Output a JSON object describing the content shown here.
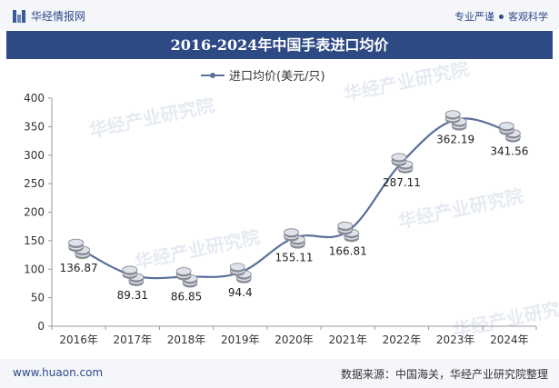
{
  "header": {
    "brand": "华经情报网",
    "tagline_left": "专业严谨",
    "tagline_right": "客观科学",
    "title": "2016-2024年中国手表进口均价"
  },
  "footer": {
    "url": "www.huaon.com",
    "source": "数据来源：中国海关，华经产业研究院整理"
  },
  "watermark": "华经产业研究院",
  "colors": {
    "header_bg": "#2e4a85",
    "line": "#5b6f9c",
    "brand": "#2d4a8a"
  },
  "chart_data": {
    "type": "line",
    "title": "2016-2024年中国手表进口均价",
    "categories": [
      "2016年",
      "2017年",
      "2018年",
      "2019年",
      "2020年",
      "2021年",
      "2022年",
      "2023年",
      "2024年"
    ],
    "series": [
      {
        "name": "进口均价(美元/只)",
        "values": [
          136.87,
          89.31,
          86.85,
          94.4,
          155.11,
          166.81,
          287.11,
          362.19,
          341.56
        ],
        "labels": [
          "136.87",
          "89.31",
          "86.85",
          "94.4",
          "155.11",
          "166.81",
          "287.11",
          "362.19",
          "341.56"
        ]
      }
    ],
    "ylim": [
      0,
      400
    ],
    "yticks": [
      0,
      50,
      100,
      150,
      200,
      250,
      300,
      350,
      400
    ],
    "xlabel": "",
    "ylabel": "",
    "legend": "top-center",
    "grid": false
  }
}
